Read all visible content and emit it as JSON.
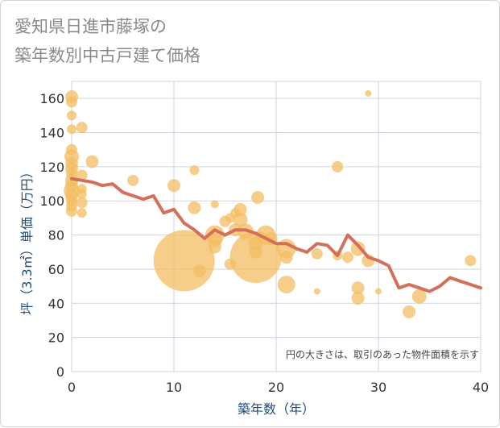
{
  "chart_data": {
    "type": "scatter",
    "title_lines": [
      "愛知県日進市藤塚の",
      "築年数別中古戸建て価格"
    ],
    "xlabel": "築年数（年）",
    "ylabel": "坪（3.3㎡）単価（万円）",
    "xlim": [
      0,
      40
    ],
    "ylim": [
      0,
      170
    ],
    "xticks": [
      0,
      10,
      20,
      30,
      40
    ],
    "yticks": [
      0,
      20,
      40,
      60,
      80,
      100,
      120,
      140,
      160
    ],
    "note": "円の大きさは、取引のあった物件面積を示す",
    "colors": {
      "bubble": "#f3bd62",
      "line": "#d4705a",
      "grid": "#ccd6e0"
    },
    "bubbles": [
      {
        "x": 0,
        "y": 161,
        "s": 8
      },
      {
        "x": 0,
        "y": 158,
        "s": 7
      },
      {
        "x": 0,
        "y": 150,
        "s": 6
      },
      {
        "x": 0,
        "y": 142,
        "s": 6
      },
      {
        "x": 0,
        "y": 130,
        "s": 7
      },
      {
        "x": 0,
        "y": 126,
        "s": 9
      },
      {
        "x": 0,
        "y": 122,
        "s": 8
      },
      {
        "x": 0,
        "y": 119,
        "s": 8
      },
      {
        "x": 0,
        "y": 116,
        "s": 7
      },
      {
        "x": 0,
        "y": 112,
        "s": 8
      },
      {
        "x": 0,
        "y": 109,
        "s": 8
      },
      {
        "x": 0,
        "y": 106,
        "s": 10
      },
      {
        "x": 0,
        "y": 103,
        "s": 8
      },
      {
        "x": 0,
        "y": 100,
        "s": 7
      },
      {
        "x": 0,
        "y": 97,
        "s": 7
      },
      {
        "x": 0,
        "y": 94,
        "s": 7
      },
      {
        "x": 1,
        "y": 143,
        "s": 7
      },
      {
        "x": 1,
        "y": 115,
        "s": 7
      },
      {
        "x": 1,
        "y": 107,
        "s": 6
      },
      {
        "x": 1,
        "y": 104,
        "s": 6
      },
      {
        "x": 1,
        "y": 99,
        "s": 7
      },
      {
        "x": 1,
        "y": 93,
        "s": 6
      },
      {
        "x": 2,
        "y": 123,
        "s": 8
      },
      {
        "x": 6,
        "y": 112,
        "s": 7
      },
      {
        "x": 10,
        "y": 109,
        "s": 8
      },
      {
        "x": 12,
        "y": 118,
        "s": 6
      },
      {
        "x": 12,
        "y": 96,
        "s": 8
      },
      {
        "x": 14,
        "y": 98,
        "s": 5
      },
      {
        "x": 11,
        "y": 65,
        "s": 38
      },
      {
        "x": 12.5,
        "y": 59,
        "s": 8
      },
      {
        "x": 14,
        "y": 80,
        "s": 12
      },
      {
        "x": 14,
        "y": 77,
        "s": 9
      },
      {
        "x": 14,
        "y": 73,
        "s": 8
      },
      {
        "x": 15,
        "y": 88,
        "s": 7
      },
      {
        "x": 15.5,
        "y": 90,
        "s": 6
      },
      {
        "x": 16,
        "y": 83,
        "s": 8
      },
      {
        "x": 16,
        "y": 93,
        "s": 6
      },
      {
        "x": 16.5,
        "y": 95,
        "s": 8
      },
      {
        "x": 16.5,
        "y": 89,
        "s": 9
      },
      {
        "x": 17,
        "y": 82,
        "s": 10
      },
      {
        "x": 18,
        "y": 67,
        "s": 32
      },
      {
        "x": 18,
        "y": 75,
        "s": 9
      },
      {
        "x": 18,
        "y": 70,
        "s": 8
      },
      {
        "x": 18.2,
        "y": 102,
        "s": 8
      },
      {
        "x": 19,
        "y": 80,
        "s": 12
      },
      {
        "x": 19.5,
        "y": 78,
        "s": 8
      },
      {
        "x": 15.5,
        "y": 63,
        "s": 7
      },
      {
        "x": 21,
        "y": 72,
        "s": 12
      },
      {
        "x": 21,
        "y": 67,
        "s": 8
      },
      {
        "x": 21,
        "y": 51,
        "s": 11
      },
      {
        "x": 24,
        "y": 69,
        "s": 7
      },
      {
        "x": 24,
        "y": 47,
        "s": 4
      },
      {
        "x": 26,
        "y": 120,
        "s": 7
      },
      {
        "x": 26,
        "y": 68,
        "s": 6
      },
      {
        "x": 27,
        "y": 67,
        "s": 7
      },
      {
        "x": 28,
        "y": 72,
        "s": 9
      },
      {
        "x": 28,
        "y": 49,
        "s": 8
      },
      {
        "x": 28,
        "y": 43,
        "s": 8
      },
      {
        "x": 29,
        "y": 163,
        "s": 4
      },
      {
        "x": 29,
        "y": 65,
        "s": 8
      },
      {
        "x": 30,
        "y": 47,
        "s": 4
      },
      {
        "x": 33,
        "y": 35,
        "s": 8
      },
      {
        "x": 34,
        "y": 44,
        "s": 9
      },
      {
        "x": 39,
        "y": 65,
        "s": 7
      }
    ],
    "trend": {
      "x": [
        0,
        1,
        2,
        3,
        4,
        5,
        6,
        7,
        8,
        9,
        10,
        11,
        12,
        13,
        14,
        15,
        16,
        17,
        18,
        19,
        20,
        21,
        22,
        23,
        24,
        25,
        26,
        27,
        28,
        29,
        30,
        31,
        32,
        33,
        34,
        35,
        36,
        37,
        38,
        39,
        40
      ],
      "y": [
        113,
        112,
        111,
        109,
        110,
        105,
        103,
        101,
        103,
        93,
        95,
        87,
        83,
        78,
        83,
        80,
        83,
        83,
        81,
        78,
        75,
        75,
        72,
        70,
        75,
        74,
        68,
        80,
        74,
        67,
        65,
        62,
        49,
        51,
        49,
        47,
        50,
        55,
        53,
        51,
        49
      ]
    }
  }
}
